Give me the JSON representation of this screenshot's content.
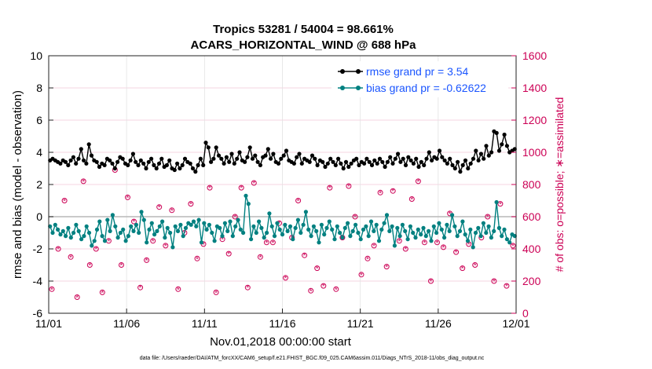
{
  "chart_data": {
    "type": "line",
    "title": "Tropics 53281 / 54004 = 98.661%",
    "subtitle": "ACARS_HORIZONTAL_WIND @ 688 hPa",
    "xlabel": "Nov.01,2018 00:00:00 start",
    "ylabel": "rmse and bias (model - observation)",
    "ylabel_right": "# of obs: o=possible; ∗=assimilated",
    "x_tick_labels": [
      "11/01",
      "11/06",
      "11/11",
      "11/16",
      "11/21",
      "11/26",
      "12/01"
    ],
    "x_range_days": [
      0,
      30
    ],
    "ylim": [
      -6,
      10
    ],
    "yticks": [
      -6,
      -4,
      -2,
      0,
      2,
      4,
      6,
      8,
      10
    ],
    "ylim_right": [
      0,
      1600
    ],
    "yticks_right": [
      0,
      200,
      400,
      600,
      800,
      1000,
      1200,
      1400,
      1600
    ],
    "legend_position": "top-right",
    "footnote": "data file: /Users/raeder/DAI/ATM_forcXX/CAM6_setup/f.e21.FHIST_BGC.f09_025.CAM6assim.011/Diags_NTrS_2018-11/obs_diag_output.nc",
    "series": [
      {
        "name": "rmse grand pr = 3.54",
        "axis": "left",
        "color": "#000000",
        "values": [
          3.5,
          3.6,
          3.5,
          3.4,
          3.3,
          3.5,
          3.4,
          3.2,
          3.5,
          3.7,
          3.3,
          3.6,
          4.2,
          3.5,
          3.3,
          4.5,
          3.8,
          3.5,
          3.4,
          3.1,
          3.3,
          3.2,
          3.6,
          3.5,
          3.3,
          3.0,
          3.4,
          3.7,
          3.6,
          3.3,
          3.2,
          3.5,
          3.9,
          3.4,
          3.2,
          3.5,
          3.3,
          3.0,
          3.4,
          3.6,
          3.2,
          3.0,
          3.3,
          3.6,
          3.1,
          3.2,
          3.5,
          3.0,
          2.9,
          3.3,
          3.0,
          3.2,
          3.6,
          3.4,
          3.3,
          3.0,
          2.8,
          3.2,
          3.6,
          3.2,
          4.6,
          4.3,
          3.4,
          3.6,
          4.3,
          3.8,
          3.6,
          3.3,
          3.7,
          3.4,
          3.9,
          3.3,
          3.6,
          4.0,
          3.5,
          3.4,
          3.7,
          4.3,
          3.6,
          3.8,
          3.4,
          3.2,
          3.7,
          3.8,
          4.2,
          3.6,
          3.9,
          3.4,
          3.3,
          3.6,
          3.8,
          4.1,
          3.5,
          3.4,
          3.3,
          3.7,
          3.9,
          3.3,
          3.6,
          3.5,
          3.4,
          3.8,
          3.6,
          3.2,
          3.5,
          3.4,
          3.1,
          3.3,
          3.6,
          3.4,
          3.2,
          3.6,
          3.3,
          3.0,
          3.4,
          3.1,
          3.3,
          3.5,
          3.6,
          3.2,
          3.4,
          3.3,
          3.6,
          3.4,
          3.2,
          3.5,
          3.3,
          3.6,
          3.4,
          3.1,
          3.4,
          3.7,
          3.3,
          3.6,
          3.9,
          3.4,
          3.6,
          3.2,
          3.7,
          3.5,
          3.3,
          3.6,
          3.1,
          3.4,
          3.2,
          3.6,
          4.0,
          3.5,
          3.7,
          3.6,
          4.1,
          3.7,
          3.5,
          3.3,
          3.6,
          3.2,
          3.0,
          3.4,
          2.8,
          3.2,
          3.5,
          3.0,
          3.3,
          3.6,
          4.1,
          3.5,
          3.9,
          3.6,
          4.4,
          3.8,
          4.0,
          5.3,
          5.2,
          4.1,
          4.5,
          5.1,
          4.4,
          4.0,
          4.1,
          4.2
        ],
        "marker": "o"
      },
      {
        "name": "bias grand pr = -0.62622",
        "axis": "left",
        "color": "#008080",
        "values": [
          -0.6,
          -1.0,
          -0.5,
          -0.8,
          -1.1,
          -0.9,
          -1.2,
          -0.7,
          -1.3,
          -1.0,
          -0.5,
          -0.9,
          -1.4,
          -1.2,
          -0.6,
          -1.0,
          -1.8,
          -1.5,
          -0.8,
          -0.3,
          -1.2,
          -1.5,
          -0.2,
          -0.9,
          0.1,
          -0.6,
          -1.3,
          -1.0,
          -0.8,
          -1.5,
          -1.2,
          -0.6,
          -0.9,
          -0.5,
          -1.0,
          0.3,
          -0.2,
          -1.6,
          -0.8,
          -0.4,
          -1.1,
          -0.9,
          -0.6,
          -0.3,
          -1.3,
          -0.7,
          -1.0,
          -1.9,
          -0.6,
          -0.9,
          -0.5,
          -1.2,
          -0.7,
          -0.4,
          -0.5,
          -0.3,
          -0.6,
          -0.2,
          -1.6,
          -0.4,
          -0.8,
          -0.5,
          -1.0,
          -1.5,
          -0.6,
          -0.7,
          -1.2,
          -0.4,
          -0.9,
          -0.3,
          -1.2,
          -0.6,
          -0.2,
          -0.8,
          -1.0,
          1.3,
          0.8,
          -1.4,
          -0.6,
          -1.0,
          -0.3,
          -0.7,
          -1.3,
          -1.0,
          0.2,
          -0.6,
          -1.2,
          -0.4,
          -0.8,
          -1.1,
          -0.5,
          -0.9,
          -0.6,
          -1.4,
          -0.7,
          -0.2,
          -1.0,
          -0.5,
          0.3,
          -0.8,
          -1.2,
          -0.6,
          -0.9,
          -1.6,
          -0.5,
          -1.1,
          -0.7,
          -0.3,
          -0.8,
          -1.4,
          -0.6,
          -1.0,
          -1.3,
          -0.7,
          -0.4,
          -1.2,
          -0.9,
          -0.5,
          -1.0,
          -1.4,
          -0.8,
          -0.6,
          -1.2,
          -0.3,
          -0.9,
          -0.5,
          -1.5,
          -0.8,
          -0.4,
          0.1,
          -0.9,
          -0.6,
          -1.8,
          -0.7,
          -1.2,
          -0.5,
          -0.9,
          -1.4,
          -0.6,
          -1.0,
          -1.3,
          -0.8,
          -1.1,
          -0.7,
          -1.2,
          -0.9,
          -1.5,
          -0.6,
          -1.0,
          -0.4,
          -0.8,
          -1.3,
          -0.5,
          -0.9,
          0.1,
          -0.6,
          -1.2,
          -0.9,
          -0.3,
          -1.1,
          -1.5,
          -0.8,
          -1.9,
          -1.0,
          -0.7,
          -1.2,
          -0.4,
          -1.0,
          -0.6,
          -1.3,
          -0.9,
          0.9,
          -0.7,
          -1.2,
          -0.8,
          -1.4,
          -1.6,
          -1.1,
          -1.2
        ],
        "marker": "o"
      },
      {
        "name": "# of obs possible",
        "axis": "right",
        "color": "#cc0055",
        "values": [
          150,
          400,
          700,
          350,
          100,
          820,
          300,
          400,
          130,
          450,
          890,
          300,
          720,
          570,
          160,
          330,
          450,
          660,
          420,
          640,
          150,
          500,
          680,
          340,
          430,
          780,
          130,
          460,
          370,
          600,
          780,
          160,
          810,
          350,
          440,
          440,
          560,
          220,
          470,
          700,
          360,
          140,
          280,
          170,
          780,
          150,
          470,
          790,
          600,
          240,
          340,
          420,
          750,
          290,
          760,
          450,
          400,
          710,
          820,
          440,
          200,
          440,
          410,
          620,
          380,
          280,
          430,
          300,
          470,
          600,
          200,
          680,
          170,
          420
        ],
        "marker": "o"
      },
      {
        "name": "# of obs assimilated",
        "axis": "right",
        "color": "#cc0055",
        "values": [
          150,
          400,
          700,
          350,
          100,
          820,
          300,
          400,
          130,
          450,
          890,
          300,
          720,
          570,
          160,
          330,
          450,
          660,
          420,
          640,
          150,
          500,
          680,
          340,
          430,
          780,
          130,
          460,
          370,
          600,
          780,
          160,
          810,
          350,
          440,
          440,
          560,
          220,
          470,
          700,
          360,
          140,
          280,
          170,
          780,
          150,
          470,
          790,
          600,
          240,
          340,
          420,
          750,
          290,
          760,
          450,
          400,
          710,
          820,
          440,
          200,
          440,
          410,
          620,
          380,
          280,
          430,
          300,
          470,
          600,
          200,
          680,
          170,
          420
        ],
        "marker": "*"
      }
    ]
  }
}
